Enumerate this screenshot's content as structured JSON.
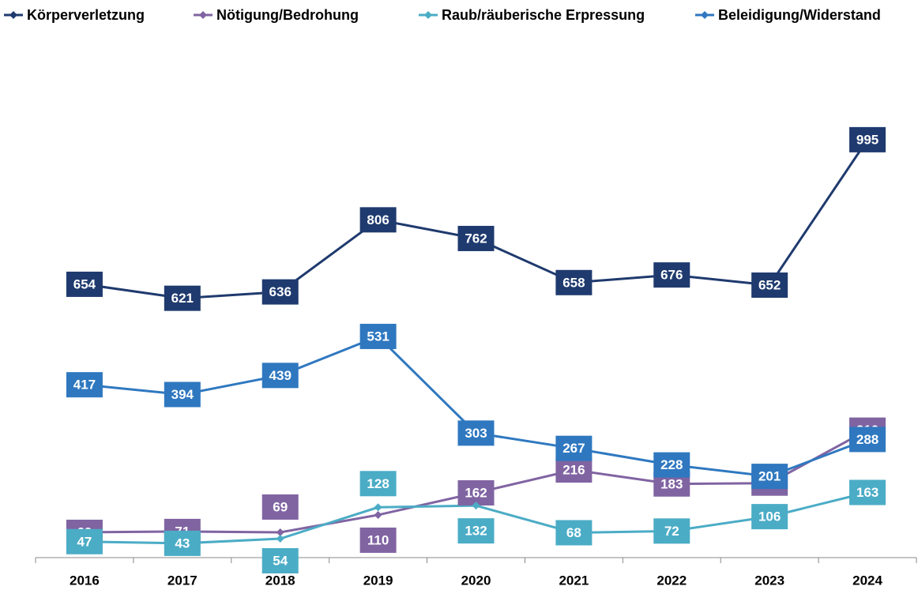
{
  "chart_data": {
    "type": "line",
    "categories": [
      "2016",
      "2017",
      "2018",
      "2019",
      "2020",
      "2021",
      "2022",
      "2023",
      "2024"
    ],
    "series": [
      {
        "name": "Körperverletzung",
        "color": "#1f3a6e",
        "values": [
          654,
          621,
          636,
          806,
          762,
          658,
          676,
          652,
          995
        ]
      },
      {
        "name": "Nötigung/Bedrohung",
        "color": "#8064a2",
        "values": [
          69,
          71,
          69,
          110,
          162,
          216,
          183,
          185,
          310
        ]
      },
      {
        "name": "Raub/räuberische Erpressung",
        "color": "#4bacc6",
        "values": [
          47,
          43,
          54,
          128,
          132,
          68,
          72,
          106,
          163
        ]
      },
      {
        "name": "Beleidigung/Widerstand",
        "color": "#2f78c0",
        "values": [
          417,
          394,
          439,
          531,
          303,
          267,
          228,
          201,
          288
        ]
      }
    ],
    "ylim": [
      0,
      1250
    ],
    "legend": "top"
  }
}
